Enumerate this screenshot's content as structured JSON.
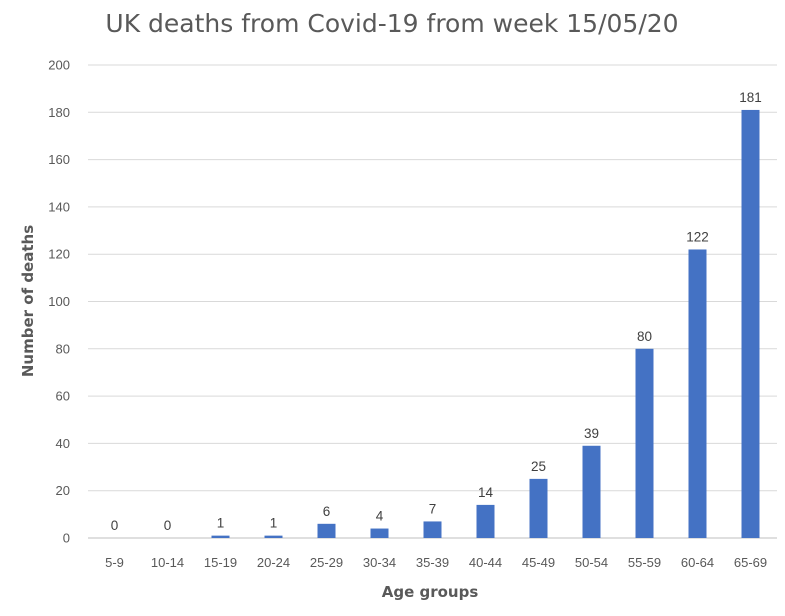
{
  "chart_data": {
    "type": "bar",
    "title": "UK deaths from Covid-19 from week 15/05/20",
    "xlabel": "Age groups",
    "ylabel": "Number of deaths",
    "categories": [
      "5-9",
      "10-14",
      "15-19",
      "20-24",
      "25-29",
      "30-34",
      "35-39",
      "40-44",
      "45-49",
      "50-54",
      "55-59",
      "60-64",
      "65-69"
    ],
    "values": [
      0,
      0,
      1,
      1,
      6,
      4,
      7,
      14,
      25,
      39,
      80,
      122,
      181
    ],
    "ylim": [
      0,
      200
    ],
    "yticks": [
      0,
      20,
      40,
      60,
      80,
      100,
      120,
      140,
      160,
      180,
      200
    ],
    "grid": true,
    "legend": "none",
    "bar_color": "#4472c4"
  }
}
